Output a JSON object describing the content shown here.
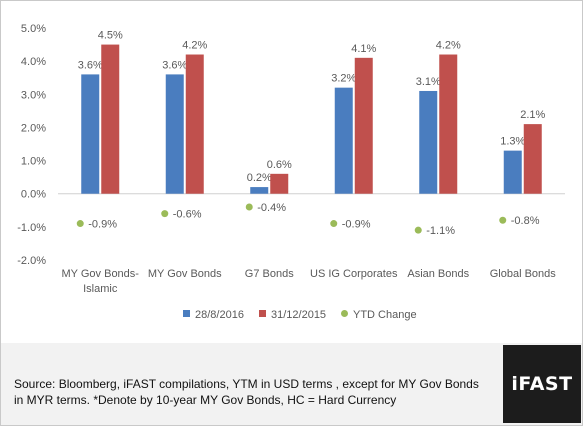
{
  "chart_data": {
    "type": "bar",
    "categories": [
      "MY Gov Bonds-Islamic",
      "MY Gov Bonds",
      "G7 Bonds",
      "US IG Corporates",
      "Asian Bonds",
      "Global Bonds"
    ],
    "category_label_lines": [
      [
        "MY Gov Bonds-",
        "Islamic"
      ],
      [
        "MY Gov Bonds"
      ],
      [
        "G7 Bonds"
      ],
      [
        "US IG Corporates"
      ],
      [
        "Asian Bonds"
      ],
      [
        "Global Bonds"
      ]
    ],
    "series": [
      {
        "name": "28/8/2016",
        "type": "bar",
        "color": "#4a7dbf",
        "values": [
          3.6,
          3.6,
          0.2,
          3.2,
          3.1,
          1.3
        ],
        "labels": [
          "3.6%",
          "3.6%",
          "0.2%",
          "3.2%",
          "3.1%",
          "1.3%"
        ]
      },
      {
        "name": "31/12/2015",
        "type": "bar",
        "color": "#c0504d",
        "values": [
          4.5,
          4.2,
          0.6,
          4.1,
          4.2,
          2.1
        ],
        "labels": [
          "4.5%",
          "4.2%",
          "0.6%",
          "4.1%",
          "4.2%",
          "2.1%"
        ]
      },
      {
        "name": "YTD Change",
        "type": "marker",
        "color": "#9bbb59",
        "values": [
          -0.9,
          -0.6,
          -0.4,
          -0.9,
          -1.1,
          -0.8
        ],
        "labels": [
          "-0.9%",
          "-0.6%",
          "-0.4%",
          "-0.9%",
          "-1.1%",
          "-0.8%"
        ]
      }
    ],
    "ylim": [
      -2.0,
      5.0
    ],
    "yticks": [
      5.0,
      4.0,
      3.0,
      2.0,
      1.0,
      0.0,
      -1.0,
      -2.0
    ],
    "ytick_labels": [
      "5.0%",
      "4.0%",
      "3.0%",
      "2.0%",
      "1.0%",
      "0.0%",
      "-1.0%",
      "-2.0%"
    ],
    "grid": false,
    "legend_position": "bottom"
  },
  "footer": {
    "source_text": "Source: Bloomberg, iFAST compilations, YTM in USD terms , except for MY Gov Bonds in MYR terms. *Denote by 10-year MY Gov Bonds, HC = Hard Currency",
    "logo_text": "iFAST"
  }
}
